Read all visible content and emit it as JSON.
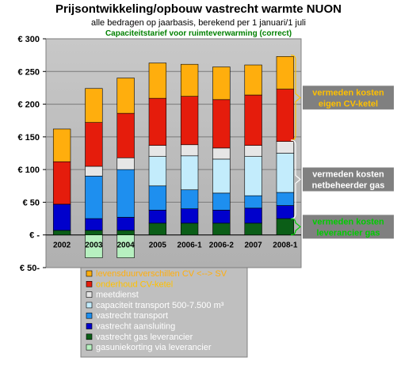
{
  "chart_data": {
    "type": "bar",
    "stacked": true,
    "title": "Prijsontwikkeling/opbouw vastrecht warmte NUON",
    "subtitle": "alle bedragen op jaarbasis, berekend per 1 januari/1 juli",
    "note": "Capaciteitstarief voor ruimteverwarming (correct)",
    "categories": [
      "2002",
      "2003",
      "2004",
      "2005",
      "2006-1",
      "2006-2",
      "2007",
      "2008-1"
    ],
    "y_tick_labels": [
      "€ 50-",
      "€ -",
      "€ 50",
      "€ 100",
      "€ 150",
      "€ 200",
      "€ 250",
      "€ 300"
    ],
    "ylim": [
      -50,
      300
    ],
    "grid": true,
    "plot_background": "#c0c0c0",
    "series": [
      {
        "name": "gasuniekorting via leverancier",
        "color": "#b7f0c0",
        "values": [
          0,
          -35,
          -35,
          0,
          0,
          0,
          0,
          0
        ]
      },
      {
        "name": "vastrecht gas leverancier",
        "color": "#0b5e17",
        "values": [
          7,
          7,
          7,
          18,
          18,
          18,
          18,
          25
        ]
      },
      {
        "name": "vastrecht aansluiting",
        "color": "#0000cc",
        "values": [
          40,
          18,
          20,
          20,
          22,
          20,
          23,
          20
        ]
      },
      {
        "name": "vastrecht transport",
        "color": "#1e8fef",
        "values": [
          0,
          65,
          73,
          37,
          29,
          26,
          19,
          20
        ]
      },
      {
        "name": "capaciteit transport 500-7.500 m³",
        "color": "#c3ecfc",
        "values": [
          0,
          0,
          0,
          45,
          52,
          52,
          60,
          60
        ]
      },
      {
        "name": "meetdienst",
        "color": "#e6e6e6",
        "values": [
          0,
          15,
          18,
          17,
          17,
          17,
          17,
          18
        ]
      },
      {
        "name": "onderhoud CV-ketel",
        "color": "#e51c0c",
        "values": [
          65,
          67,
          68,
          72,
          74,
          74,
          77,
          80
        ]
      },
      {
        "name": "levensduurverschillen CV <--> SV",
        "color": "#ffae0d",
        "values": [
          50,
          52,
          54,
          54,
          49,
          50,
          46,
          50
        ]
      }
    ],
    "annotations": [
      {
        "text": [
          "vermeden kosten",
          "eigen CV-ketel"
        ],
        "color": "#ffc000",
        "from": 145,
        "to": 275
      },
      {
        "text": [
          "vermeden kosten",
          "netbeheerder gas"
        ],
        "color": "#ffffff",
        "from": 25,
        "to": 145
      },
      {
        "text": [
          "vermeden kosten",
          "leverancier gas"
        ],
        "color": "#00cc00",
        "from": 0,
        "to": 25
      }
    ]
  }
}
